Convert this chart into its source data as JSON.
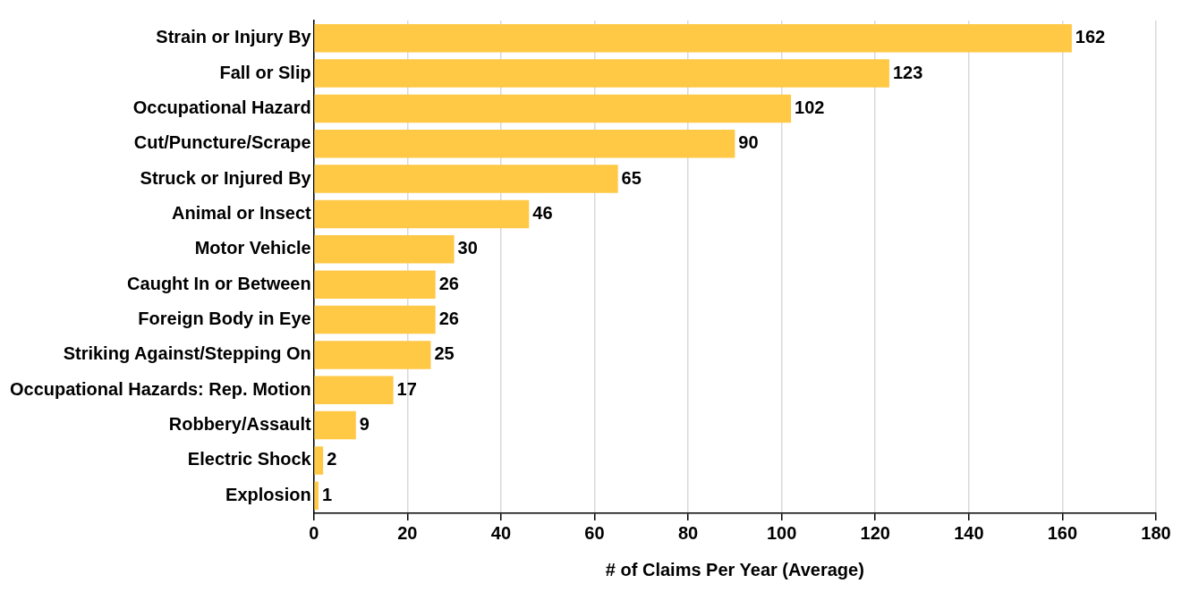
{
  "chart_data": {
    "type": "bar",
    "orientation": "horizontal",
    "xlabel": "# of Claims Per Year (Average)",
    "categories": [
      "Strain or Injury By",
      "Fall or Slip",
      "Occupational Hazard",
      "Cut/Puncture/Scrape",
      "Struck or Injured By",
      "Animal or Insect",
      "Motor Vehicle",
      "Caught In or Between",
      "Foreign Body in Eye",
      "Striking Against/Stepping On",
      "Occupational Hazards: Rep. Motion",
      "Robbery/Assault",
      "Electric Shock",
      "Explosion"
    ],
    "values": [
      162,
      123,
      102,
      90,
      65,
      46,
      30,
      26,
      26,
      25,
      17,
      9,
      2,
      1
    ],
    "color": "#ffc845",
    "xlim": [
      0,
      180
    ],
    "xticks": [
      0,
      20,
      40,
      60,
      80,
      100,
      120,
      140,
      160,
      180
    ],
    "grid": "x",
    "data_labels": true,
    "legend": false
  }
}
